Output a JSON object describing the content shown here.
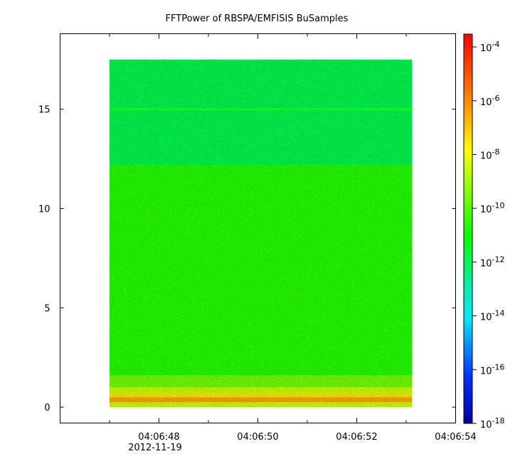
{
  "chart_data": {
    "type": "heatmap",
    "title": "FFTPower of RBSPA/EMFISIS  BuSamples",
    "x_axis": {
      "type": "time",
      "date": "2012-11-19",
      "range": [
        "04:06:46",
        "04:06:54"
      ],
      "tick_labels": [
        "04:06:48",
        "04:06:50",
        "04:06:52",
        "04:06:54"
      ],
      "tick_values_s": [
        48,
        50,
        52,
        54
      ],
      "minor_tick_values_s": [
        47,
        49,
        51,
        53
      ]
    },
    "y_axis": {
      "range": [
        -0.8,
        18.8
      ],
      "ticks": [
        0,
        5,
        10,
        15
      ],
      "tick_labels": [
        "0",
        "5",
        "10",
        "15"
      ]
    },
    "colorbar": {
      "scale": "log",
      "range": [
        1e-18,
        0.0003
      ],
      "ticks": [
        {
          "value": 0.0001,
          "base": "10",
          "exp": "-4"
        },
        {
          "value": 1e-06,
          "base": "10",
          "exp": "-6"
        },
        {
          "value": 1e-08,
          "base": "10",
          "exp": "-8"
        },
        {
          "value": 1e-10,
          "base": "10",
          "exp": "-10"
        },
        {
          "value": 1e-12,
          "base": "10",
          "exp": "-12"
        },
        {
          "value": 1e-14,
          "base": "10",
          "exp": "-14"
        },
        {
          "value": 1e-16,
          "base": "10",
          "exp": "-16"
        },
        {
          "value": 1e-18,
          "base": "10",
          "exp": "-18"
        }
      ],
      "colormap": "rainbow (blue-cyan-green-yellow-orange-red)"
    },
    "data_extent": {
      "x_start_s": 47.0,
      "x_end_s": 53.12,
      "y_min": 0,
      "y_max": 17.5
    },
    "spectral_bands": [
      {
        "y_from": 0.0,
        "y_to": 0.25,
        "log10_power": -8.5
      },
      {
        "y_from": 0.25,
        "y_to": 0.5,
        "log10_power": -6.5
      },
      {
        "y_from": 0.5,
        "y_to": 0.7,
        "log10_power": -7.5
      },
      {
        "y_from": 0.7,
        "y_to": 1.0,
        "log10_power": -8.5
      },
      {
        "y_from": 1.0,
        "y_to": 1.6,
        "log10_power": -9.6
      },
      {
        "y_from": 1.6,
        "y_to": 12.2,
        "log10_power": -10.6
      },
      {
        "y_from": 12.2,
        "y_to": 17.5,
        "log10_power": -11.9
      }
    ],
    "line_features": [
      {
        "y": 15.0,
        "log10_power": -10.8
      }
    ],
    "grid": false,
    "legend": "none"
  }
}
